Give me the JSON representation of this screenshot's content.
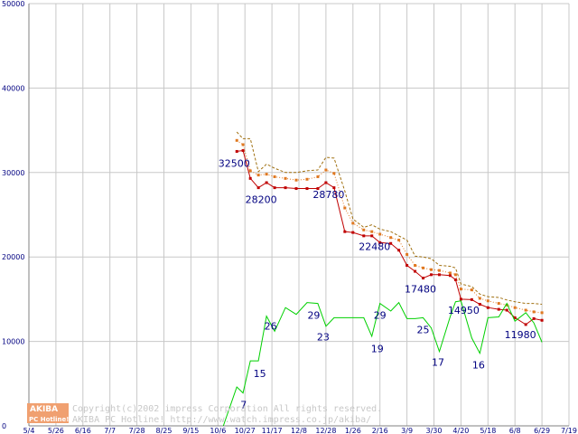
{
  "chart_data": {
    "type": "line",
    "categories": [
      "5/4",
      "5/26",
      "6/16",
      "7/7",
      "7/28",
      "8/25",
      "9/15",
      "10/6",
      "10/27",
      "11/17",
      "12/8",
      "12/28",
      "1/26",
      "2/16",
      "3/9",
      "3/30",
      "4/20",
      "5/18",
      "6/8",
      "6/29",
      "7/19"
    ],
    "ylim": [
      0,
      50000
    ],
    "yticks": [
      "0",
      "10000",
      "20000",
      "30000",
      "40000",
      "50000"
    ],
    "grid": true,
    "series": [
      {
        "color": "#c00000",
        "style": "solid-marker",
        "points": [
          [
            7.7,
            32500
          ],
          [
            7.93,
            32600
          ],
          [
            8.2,
            29300
          ],
          [
            8.5,
            28200
          ],
          [
            8.8,
            28800
          ],
          [
            9.1,
            28200
          ],
          [
            9.5,
            28200
          ],
          [
            9.9,
            28100
          ],
          [
            10.3,
            28100
          ],
          [
            10.7,
            28100
          ],
          [
            11.0,
            28800
          ],
          [
            11.3,
            28200
          ],
          [
            11.7,
            23000
          ],
          [
            12.0,
            22900
          ],
          [
            12.4,
            22500
          ],
          [
            12.7,
            22500
          ],
          [
            13.0,
            21700
          ],
          [
            13.4,
            21600
          ],
          [
            13.7,
            20800
          ],
          [
            14.0,
            19000
          ],
          [
            14.3,
            18300
          ],
          [
            14.6,
            17500
          ],
          [
            14.9,
            17900
          ],
          [
            15.2,
            17900
          ],
          [
            15.6,
            17800
          ],
          [
            15.8,
            17300
          ],
          [
            16.0,
            15000
          ],
          [
            16.4,
            14950
          ],
          [
            16.7,
            14400
          ],
          [
            17.0,
            14000
          ],
          [
            17.4,
            13800
          ],
          [
            17.7,
            13700
          ],
          [
            18.0,
            12800
          ],
          [
            18.4,
            12000
          ],
          [
            18.7,
            12700
          ],
          [
            19.0,
            12500
          ]
        ]
      },
      {
        "color": "#e07820",
        "style": "dotted-marker",
        "points": [
          [
            7.7,
            33800
          ],
          [
            7.93,
            33300
          ],
          [
            8.2,
            30200
          ],
          [
            8.5,
            29700
          ],
          [
            8.8,
            29800
          ],
          [
            9.1,
            29500
          ],
          [
            9.5,
            29300
          ],
          [
            9.9,
            29100
          ],
          [
            10.3,
            29200
          ],
          [
            10.7,
            29500
          ],
          [
            11.0,
            30300
          ],
          [
            11.3,
            29900
          ],
          [
            11.7,
            25800
          ],
          [
            12.0,
            24000
          ],
          [
            12.4,
            23200
          ],
          [
            12.7,
            23000
          ],
          [
            13.0,
            22700
          ],
          [
            13.4,
            22300
          ],
          [
            13.7,
            22000
          ],
          [
            14.0,
            20300
          ],
          [
            14.3,
            19000
          ],
          [
            14.6,
            18700
          ],
          [
            14.9,
            18500
          ],
          [
            15.2,
            18400
          ],
          [
            15.6,
            18100
          ],
          [
            15.8,
            17900
          ],
          [
            16.0,
            16200
          ],
          [
            16.4,
            16100
          ],
          [
            16.7,
            15100
          ],
          [
            17.0,
            14800
          ],
          [
            17.4,
            14500
          ],
          [
            17.7,
            14300
          ],
          [
            18.0,
            14000
          ],
          [
            18.4,
            13700
          ],
          [
            18.7,
            13500
          ],
          [
            19.0,
            13400
          ]
        ]
      },
      {
        "color": "#a07010",
        "style": "dashed",
        "points": [
          [
            7.7,
            34800
          ],
          [
            7.93,
            34000
          ],
          [
            8.2,
            34000
          ],
          [
            8.5,
            30100
          ],
          [
            8.8,
            31000
          ],
          [
            9.1,
            30500
          ],
          [
            9.5,
            30000
          ],
          [
            9.9,
            30000
          ],
          [
            10.3,
            30200
          ],
          [
            10.7,
            30300
          ],
          [
            11.0,
            31800
          ],
          [
            11.3,
            31700
          ],
          [
            11.7,
            27800
          ],
          [
            12.0,
            24500
          ],
          [
            12.4,
            23500
          ],
          [
            12.7,
            23800
          ],
          [
            13.0,
            23300
          ],
          [
            13.4,
            23000
          ],
          [
            13.7,
            22500
          ],
          [
            14.0,
            22000
          ],
          [
            14.3,
            20100
          ],
          [
            14.6,
            20000
          ],
          [
            14.9,
            19800
          ],
          [
            15.2,
            19000
          ],
          [
            15.6,
            18900
          ],
          [
            15.8,
            18700
          ],
          [
            16.0,
            16800
          ],
          [
            16.4,
            16500
          ],
          [
            16.7,
            15600
          ],
          [
            17.0,
            15300
          ],
          [
            17.4,
            15200
          ],
          [
            17.7,
            14900
          ],
          [
            18.0,
            14700
          ],
          [
            18.4,
            14500
          ],
          [
            18.7,
            14500
          ],
          [
            19.0,
            14400
          ]
        ]
      },
      {
        "color": "#00d000",
        "style": "solid",
        "secondary_label_values": true,
        "points": [
          [
            7.2,
            0
          ],
          [
            7.7,
            4600
          ],
          [
            7.93,
            3900
          ],
          [
            8.2,
            7700
          ],
          [
            8.5,
            7700
          ],
          [
            8.8,
            13000
          ],
          [
            9.1,
            11200
          ],
          [
            9.5,
            14000
          ],
          [
            9.9,
            13200
          ],
          [
            10.3,
            14600
          ],
          [
            10.7,
            14500
          ],
          [
            11.0,
            11800
          ],
          [
            11.3,
            12800
          ],
          [
            11.7,
            12800
          ],
          [
            12.0,
            12800
          ],
          [
            12.4,
            12800
          ],
          [
            12.7,
            10600
          ],
          [
            13.0,
            14500
          ],
          [
            13.4,
            13600
          ],
          [
            13.7,
            14600
          ],
          [
            14.0,
            12700
          ],
          [
            14.3,
            12700
          ],
          [
            14.6,
            12800
          ],
          [
            14.9,
            11600
          ],
          [
            15.2,
            8800
          ],
          [
            15.6,
            12900
          ],
          [
            15.8,
            14700
          ],
          [
            16.0,
            14800
          ],
          [
            16.4,
            10400
          ],
          [
            16.7,
            8600
          ],
          [
            17.0,
            12800
          ],
          [
            17.4,
            12900
          ],
          [
            17.7,
            14500
          ],
          [
            18.0,
            12400
          ],
          [
            18.4,
            13400
          ],
          [
            18.7,
            12200
          ],
          [
            19.0,
            9900
          ]
        ]
      }
    ],
    "data_labels": [
      {
        "text": "32500",
        "x": 7.6,
        "y": 30700
      },
      {
        "text": "28200",
        "x": 8.6,
        "y": 26400
      },
      {
        "text": "28780",
        "x": 11.1,
        "y": 27000
      },
      {
        "text": "22480",
        "x": 12.8,
        "y": 20800
      },
      {
        "text": "17480",
        "x": 14.5,
        "y": 15800
      },
      {
        "text": "14950",
        "x": 16.1,
        "y": 13300
      },
      {
        "text": "11980",
        "x": 18.2,
        "y": 10400
      },
      {
        "text": "7",
        "x": 7.95,
        "y": 2100
      },
      {
        "text": "15",
        "x": 8.55,
        "y": 5800
      },
      {
        "text": "26",
        "x": 8.95,
        "y": 11400
      },
      {
        "text": "29",
        "x": 10.55,
        "y": 12700
      },
      {
        "text": "23",
        "x": 10.9,
        "y": 10100
      },
      {
        "text": "29",
        "x": 13.0,
        "y": 12700
      },
      {
        "text": "19",
        "x": 12.9,
        "y": 8700
      },
      {
        "text": "25",
        "x": 14.6,
        "y": 11000
      },
      {
        "text": "17",
        "x": 15.15,
        "y": 7100
      },
      {
        "text": "16",
        "x": 16.65,
        "y": 6800
      }
    ]
  },
  "watermark": {
    "logo_top": "AKIBA",
    "logo_bottom": "PC Hotline!",
    "line1": "Copyright(c)2002 impress Corporation All rights reserved.",
    "line2": "AKIBA PC Hotline! http://www.watch.impress.co.jp/akiba/"
  }
}
